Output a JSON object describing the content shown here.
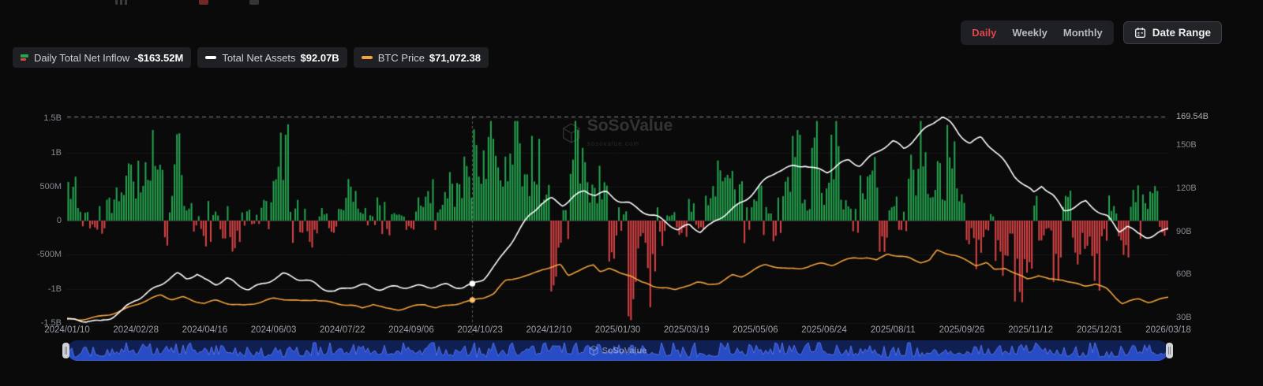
{
  "header": {
    "time_range_tabs": [
      {
        "label": "Daily",
        "active": true
      },
      {
        "label": "Weekly",
        "active": false
      },
      {
        "label": "Monthly",
        "active": false
      }
    ],
    "date_range_button": "Date Range"
  },
  "legend": [
    {
      "name": "Daily Total Net Inflow",
      "value": "-$163.52M",
      "icon": "green-red-bars-icon"
    },
    {
      "name": "Total Net Assets",
      "value": "$92.07B",
      "icon": "white-dash-icon"
    },
    {
      "name": "BTC Price",
      "value": "$71,072.38",
      "icon": "orange-dash-icon"
    }
  ],
  "watermark": {
    "text": "SoSoValue",
    "subtext": "sosovalue.com"
  },
  "colors": {
    "background": "#0a0a0b",
    "accent_red": "#e0464a",
    "bar_green": "#25a750",
    "bar_red": "#dc4446",
    "line_net_assets": "#ffffff",
    "line_btc": "#f2a33c",
    "navigator_blue": "#2a4fd0"
  },
  "chart_data": {
    "type": "combo",
    "note": "Bar series sampled weekly (USD millions, approx. daily magnitudes); line series sampled as [t, value] with t = fraction of x-axis width.",
    "x_labels": [
      "2024/01/10",
      "2024/02/28",
      "2024/04/16",
      "2024/06/03",
      "2024/07/22",
      "2024/09/06",
      "2024/10/23",
      "2024/12/10",
      "2025/01/30",
      "2025/03/19",
      "2025/05/06",
      "2025/06/24",
      "2025/08/11",
      "2025/09/26",
      "2025/11/12",
      "2025/12/31",
      "2026/03/18"
    ],
    "left_axis": {
      "ticks": [
        "1.5B",
        "1B",
        "500M",
        "0",
        "-500M",
        "-1B",
        "-1.5B"
      ],
      "range_M": [
        -1500,
        1500
      ]
    },
    "right_axis": {
      "ticks": [
        "150B",
        "120B",
        "90B",
        "60B",
        "30B"
      ],
      "range_B": [
        30,
        150
      ],
      "ath_label": "169.54B",
      "ath_value_B": 169.54
    },
    "crosshair": {
      "x_label": "2024/10/23",
      "t": 0.368
    },
    "grid": true,
    "legend_position": "top-left",
    "series": [
      {
        "name": "Daily Total Net Inflow",
        "type": "bar",
        "unit": "USD millions",
        "current": "-$163.52M",
        "weekly_values_M": [
          510,
          120,
          -90,
          -140,
          230,
          420,
          620,
          680,
          1050,
          540,
          260,
          840,
          190,
          -120,
          -250,
          90,
          -180,
          -320,
          140,
          -80,
          260,
          580,
          940,
          220,
          -140,
          -260,
          120,
          -180,
          310,
          420,
          130,
          -90,
          220,
          -160,
          90,
          -140,
          250,
          430,
          180,
          520,
          390,
          610,
          870,
          1020,
          980,
          640,
          1370,
          560,
          920,
          480,
          -680,
          250,
          980,
          760,
          340,
          590,
          -420,
          130,
          -1100,
          -360,
          -870,
          -240,
          90,
          -160,
          220,
          -90,
          380,
          670,
          920,
          380,
          260,
          340,
          160,
          -240,
          430,
          890,
          250,
          1180,
          360,
          980,
          240,
          130,
          510,
          640,
          -320,
          240,
          -180,
          740,
          1010,
          440,
          640,
          980,
          420,
          -240,
          -480,
          130,
          -560,
          -340,
          -870,
          -520,
          240,
          -160,
          -640,
          320,
          -420,
          -340,
          -760,
          -240,
          160,
          -520,
          430,
          260,
          340,
          -163.52
        ]
      },
      {
        "name": "Total Net Assets",
        "type": "line",
        "unit": "USD billions",
        "current": "$92.07B",
        "points": [
          [
            0,
            29
          ],
          [
            0.01,
            27.5
          ],
          [
            0.02,
            28.5
          ],
          [
            0.03,
            27
          ],
          [
            0.04,
            30
          ],
          [
            0.05,
            34
          ],
          [
            0.062,
            43
          ],
          [
            0.075,
            49
          ],
          [
            0.09,
            56
          ],
          [
            0.1,
            59
          ],
          [
            0.108,
            56
          ],
          [
            0.118,
            60
          ],
          [
            0.125,
            56
          ],
          [
            0.135,
            54
          ],
          [
            0.145,
            57
          ],
          [
            0.155,
            52
          ],
          [
            0.165,
            50
          ],
          [
            0.175,
            53
          ],
          [
            0.187,
            58
          ],
          [
            0.196,
            60
          ],
          [
            0.21,
            56
          ],
          [
            0.225,
            53
          ],
          [
            0.243,
            48
          ],
          [
            0.255,
            51
          ],
          [
            0.27,
            52
          ],
          [
            0.285,
            51
          ],
          [
            0.3,
            52
          ],
          [
            0.315,
            50
          ],
          [
            0.33,
            51
          ],
          [
            0.345,
            53
          ],
          [
            0.36,
            51
          ],
          [
            0.368,
            52
          ],
          [
            0.378,
            57
          ],
          [
            0.39,
            68
          ],
          [
            0.4,
            80
          ],
          [
            0.41,
            90
          ],
          [
            0.42,
            100
          ],
          [
            0.43,
            108
          ],
          [
            0.44,
            112
          ],
          [
            0.45,
            109
          ],
          [
            0.46,
            114
          ],
          [
            0.47,
            118
          ],
          [
            0.48,
            115
          ],
          [
            0.49,
            117
          ],
          [
            0.5,
            113
          ],
          [
            0.51,
            110
          ],
          [
            0.52,
            105
          ],
          [
            0.53,
            100
          ],
          [
            0.544,
            96
          ],
          [
            0.555,
            91
          ],
          [
            0.565,
            95
          ],
          [
            0.575,
            90
          ],
          [
            0.585,
            94
          ],
          [
            0.6,
            104
          ],
          [
            0.615,
            112
          ],
          [
            0.63,
            122
          ],
          [
            0.645,
            131
          ],
          [
            0.66,
            135
          ],
          [
            0.67,
            137
          ],
          [
            0.68,
            133
          ],
          [
            0.69,
            131
          ],
          [
            0.7,
            136
          ],
          [
            0.71,
            140
          ],
          [
            0.72,
            137
          ],
          [
            0.73,
            142
          ],
          [
            0.74,
            147
          ],
          [
            0.75,
            151
          ],
          [
            0.76,
            147
          ],
          [
            0.77,
            155
          ],
          [
            0.78,
            162
          ],
          [
            0.79,
            168
          ],
          [
            0.795,
            169.5
          ],
          [
            0.803,
            164
          ],
          [
            0.81,
            158
          ],
          [
            0.82,
            152
          ],
          [
            0.83,
            156
          ],
          [
            0.84,
            148
          ],
          [
            0.85,
            138
          ],
          [
            0.86,
            128
          ],
          [
            0.87,
            121
          ],
          [
            0.878,
            117
          ],
          [
            0.885,
            123
          ],
          [
            0.895,
            115
          ],
          [
            0.905,
            104
          ],
          [
            0.915,
            107
          ],
          [
            0.925,
            111
          ],
          [
            0.935,
            106
          ],
          [
            0.945,
            100
          ],
          [
            0.955,
            89
          ],
          [
            0.963,
            93
          ],
          [
            0.972,
            87
          ],
          [
            0.98,
            86
          ],
          [
            0.99,
            89
          ],
          [
            1,
            92.07
          ]
        ]
      },
      {
        "name": "BTC Price",
        "type": "line",
        "unit": "USD thousands",
        "current": "$71,072.38",
        "points": [
          [
            0,
            46.5
          ],
          [
            0.01,
            44
          ],
          [
            0.02,
            46
          ],
          [
            0.03,
            48.5
          ],
          [
            0.04,
            52
          ],
          [
            0.052,
            57
          ],
          [
            0.062,
            62
          ],
          [
            0.075,
            68
          ],
          [
            0.085,
            73
          ],
          [
            0.095,
            69
          ],
          [
            0.105,
            71.5
          ],
          [
            0.115,
            67
          ],
          [
            0.125,
            64
          ],
          [
            0.135,
            66.5
          ],
          [
            0.148,
            63
          ],
          [
            0.16,
            61.5
          ],
          [
            0.172,
            65
          ],
          [
            0.187,
            69
          ],
          [
            0.2,
            68
          ],
          [
            0.212,
            66
          ],
          [
            0.225,
            69
          ],
          [
            0.243,
            64
          ],
          [
            0.258,
            61
          ],
          [
            0.268,
            57.5
          ],
          [
            0.278,
            63.5
          ],
          [
            0.29,
            58
          ],
          [
            0.301,
            57
          ],
          [
            0.315,
            60
          ],
          [
            0.325,
            62
          ],
          [
            0.335,
            58.5
          ],
          [
            0.348,
            62
          ],
          [
            0.36,
            66
          ],
          [
            0.368,
            67
          ],
          [
            0.378,
            70
          ],
          [
            0.388,
            75
          ],
          [
            0.398,
            90
          ],
          [
            0.408,
            94
          ],
          [
            0.42,
            97
          ],
          [
            0.432,
            104
          ],
          [
            0.442,
            106
          ],
          [
            0.448,
            108
          ],
          [
            0.455,
            96
          ],
          [
            0.462,
            101
          ],
          [
            0.472,
            106
          ],
          [
            0.478,
            109
          ],
          [
            0.484,
            102
          ],
          [
            0.492,
            105
          ],
          [
            0.502,
            98
          ],
          [
            0.512,
            96
          ],
          [
            0.522,
            88
          ],
          [
            0.532,
            84
          ],
          [
            0.544,
            83
          ],
          [
            0.552,
            79
          ],
          [
            0.562,
            84
          ],
          [
            0.572,
            88
          ],
          [
            0.582,
            85
          ],
          [
            0.592,
            88
          ],
          [
            0.604,
            97
          ],
          [
            0.612,
            95
          ],
          [
            0.624,
            103
          ],
          [
            0.634,
            108
          ],
          [
            0.645,
            106
          ],
          [
            0.655,
            104
          ],
          [
            0.665,
            105
          ],
          [
            0.675,
            108
          ],
          [
            0.685,
            110
          ],
          [
            0.695,
            108
          ],
          [
            0.705,
            113
          ],
          [
            0.715,
            117
          ],
          [
            0.726,
            118
          ],
          [
            0.735,
            114
          ],
          [
            0.745,
            122
          ],
          [
            0.755,
            118
          ],
          [
            0.765,
            116
          ],
          [
            0.775,
            112
          ],
          [
            0.783,
            114
          ],
          [
            0.79,
            126
          ],
          [
            0.798,
            123
          ],
          [
            0.806,
            120
          ],
          [
            0.815,
            114
          ],
          [
            0.825,
            108
          ],
          [
            0.835,
            111
          ],
          [
            0.842,
            103
          ],
          [
            0.852,
            106
          ],
          [
            0.862,
            98
          ],
          [
            0.872,
            92
          ],
          [
            0.882,
            96
          ],
          [
            0.892,
            91
          ],
          [
            0.904,
            92
          ],
          [
            0.914,
            88
          ],
          [
            0.924,
            84
          ],
          [
            0.934,
            87
          ],
          [
            0.944,
            80
          ],
          [
            0.952,
            70
          ],
          [
            0.958,
            64
          ],
          [
            0.965,
            67
          ],
          [
            0.973,
            69
          ],
          [
            0.982,
            66
          ],
          [
            0.99,
            68
          ],
          [
            1,
            71.07
          ]
        ]
      }
    ]
  }
}
